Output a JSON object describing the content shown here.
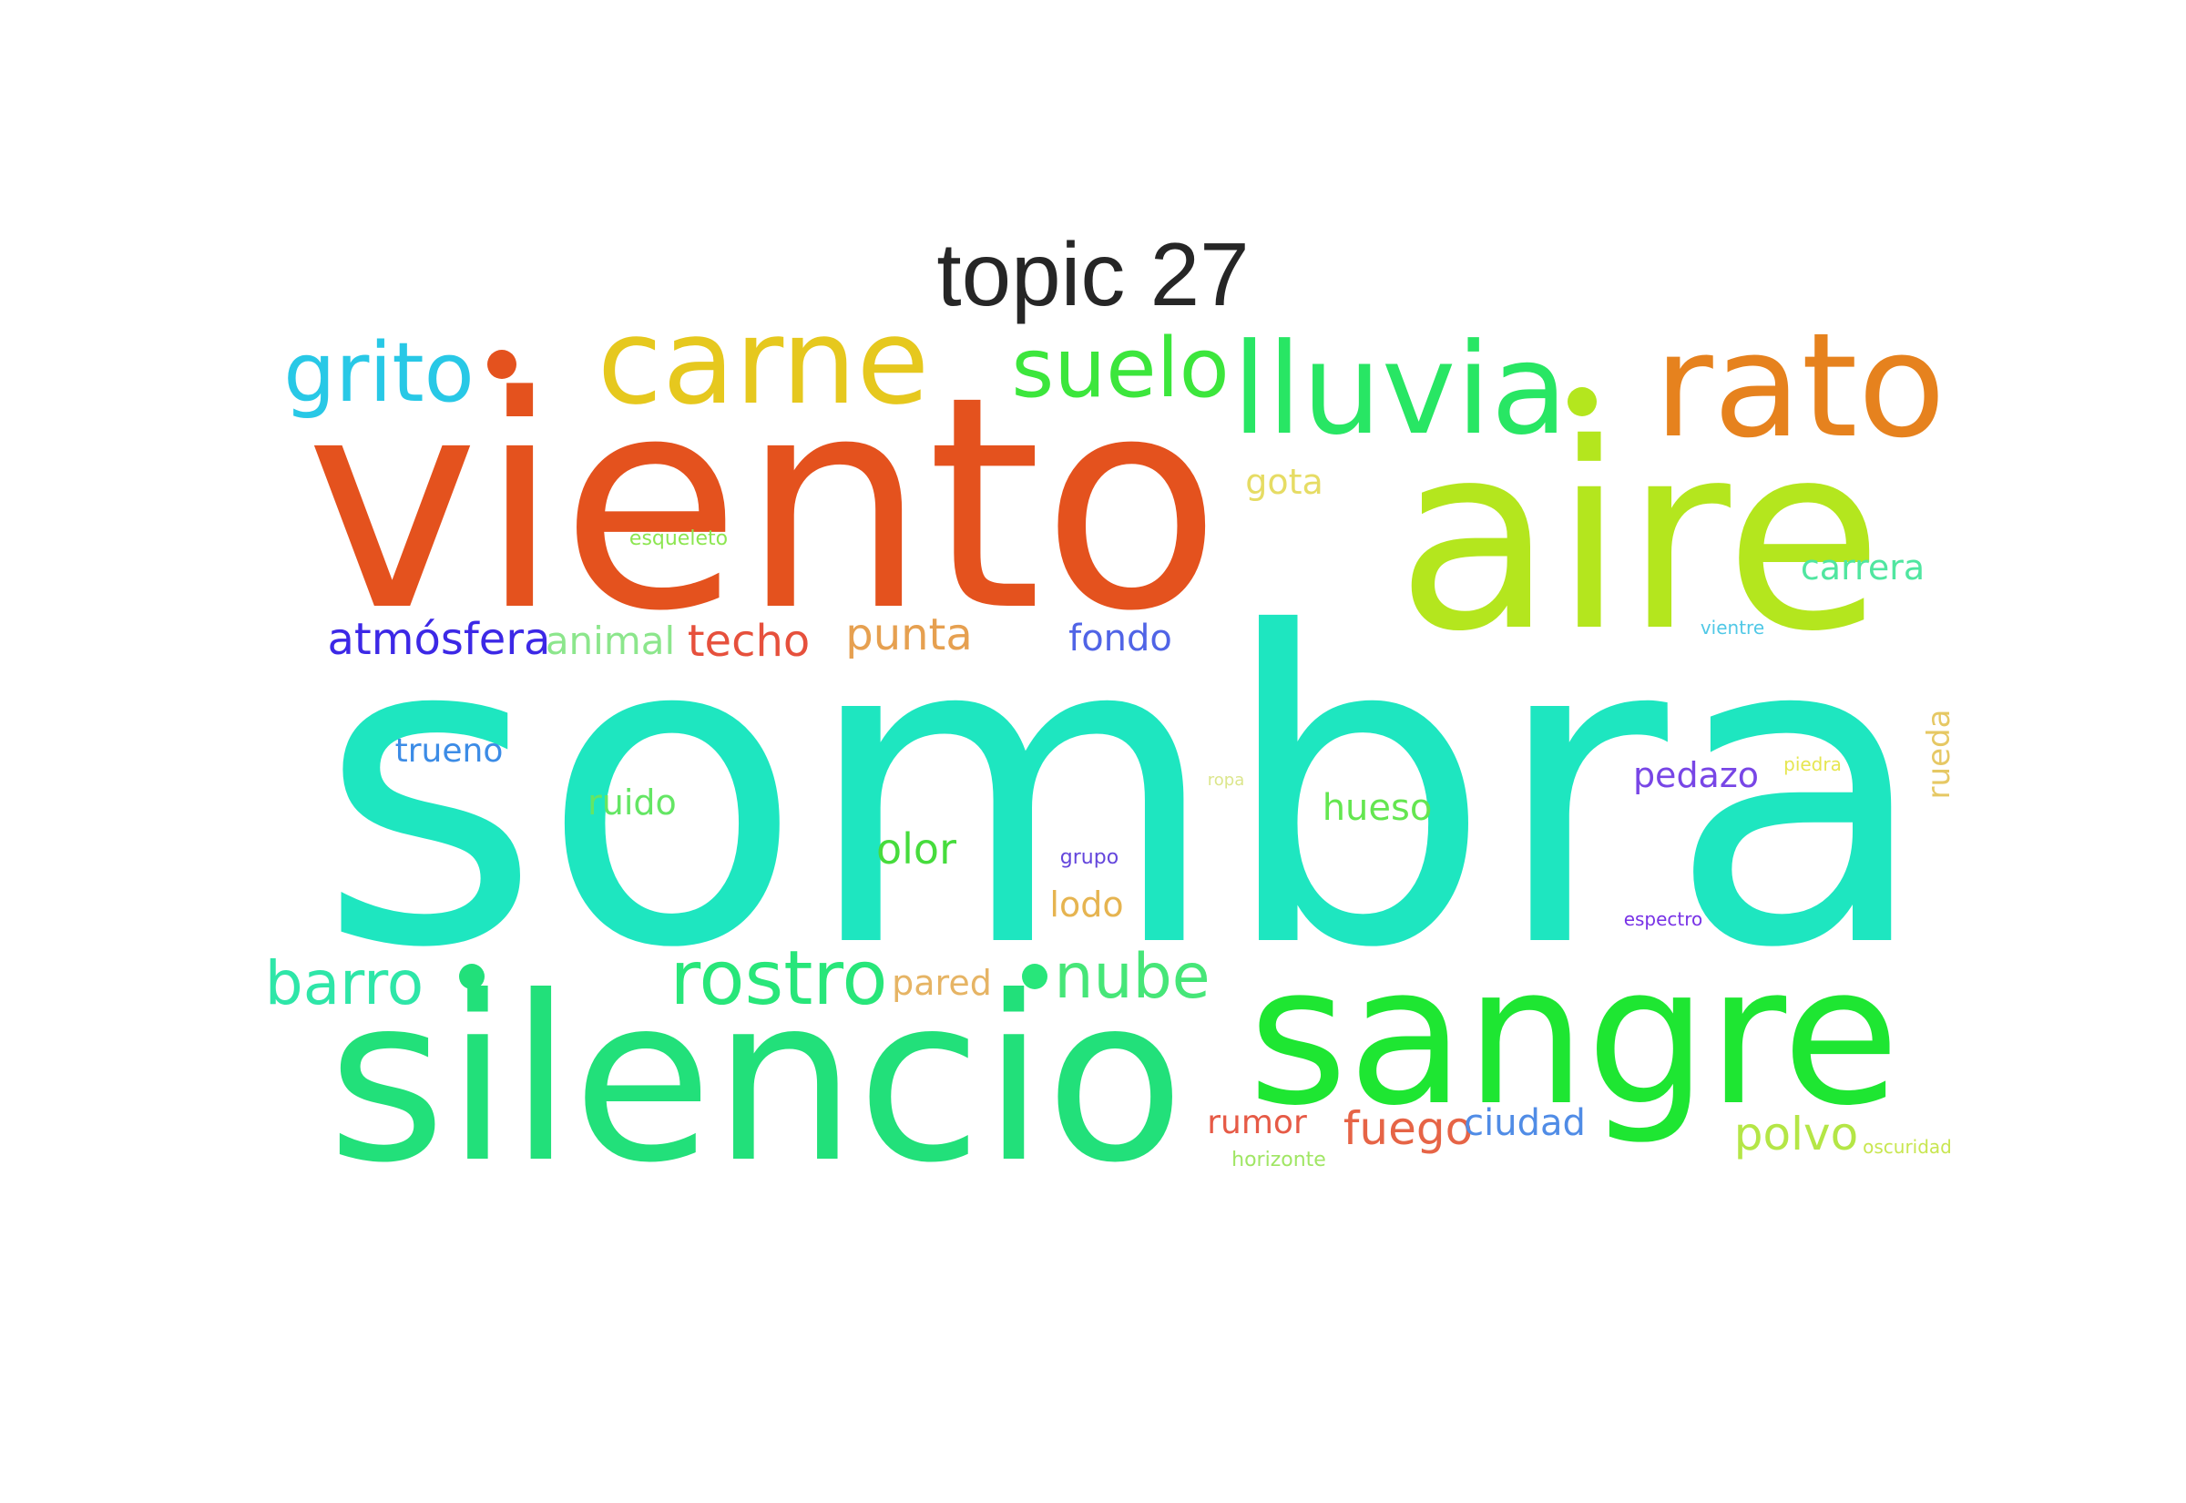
{
  "title": "topic 27",
  "words": [
    {
      "text": "sombra",
      "color": "#1ee6c0"
    },
    {
      "text": "viento",
      "color": "#e4521e"
    },
    {
      "text": "aire",
      "color": "#b4e61e"
    },
    {
      "text": "silencio",
      "color": "#22e07a"
    },
    {
      "text": "sangre",
      "color": "#1ee632"
    },
    {
      "text": "rato",
      "color": "#e6821e"
    },
    {
      "text": "lluvia",
      "color": "#28e664"
    },
    {
      "text": "carne",
      "color": "#e6c81e"
    },
    {
      "text": "suelo",
      "color": "#3ce63c"
    },
    {
      "text": "grito",
      "color": "#28c8e6"
    },
    {
      "text": "rostro",
      "color": "#28e67a"
    },
    {
      "text": "nube",
      "color": "#46e678"
    },
    {
      "text": "barro",
      "color": "#2ee6a8"
    },
    {
      "text": "atmósfera",
      "color": "#3c28e6"
    },
    {
      "text": "animal",
      "color": "#8ce68c"
    },
    {
      "text": "techo",
      "color": "#e6503c"
    },
    {
      "text": "punta",
      "color": "#e6a050"
    },
    {
      "text": "fondo",
      "color": "#5064e6"
    },
    {
      "text": "gota",
      "color": "#e6dc64"
    },
    {
      "text": "esqueleto",
      "color": "#8ce650"
    },
    {
      "text": "carrera",
      "color": "#50e6a0"
    },
    {
      "text": "vientre",
      "color": "#50c8e6"
    },
    {
      "text": "trueno",
      "color": "#3c8ce6"
    },
    {
      "text": "ruido",
      "color": "#64e664"
    },
    {
      "text": "olor",
      "color": "#46dc3c"
    },
    {
      "text": "hueso",
      "color": "#64e650"
    },
    {
      "text": "ropa",
      "color": "#dce68c"
    },
    {
      "text": "pedazo",
      "color": "#7846e6"
    },
    {
      "text": "piedra",
      "color": "#e6e650"
    },
    {
      "text": "rueda",
      "color": "#e6c864"
    },
    {
      "text": "grupo",
      "color": "#6446dc"
    },
    {
      "text": "lodo",
      "color": "#e6b450"
    },
    {
      "text": "espectro",
      "color": "#7832e6"
    },
    {
      "text": "pared",
      "color": "#e6b464"
    },
    {
      "text": "rumor",
      "color": "#e65a46"
    },
    {
      "text": "fuego",
      "color": "#e66446"
    },
    {
      "text": "ciudad",
      "color": "#508ce6"
    },
    {
      "text": "horizonte",
      "color": "#a0e664"
    },
    {
      "text": "polvo",
      "color": "#b4e646"
    },
    {
      "text": "oscuridad",
      "color": "#c8e650"
    }
  ],
  "dots": [
    {
      "color": "#e4521e"
    },
    {
      "color": "#b4e61e"
    },
    {
      "color": "#28e67a"
    },
    {
      "color": "#22e07a"
    }
  ]
}
